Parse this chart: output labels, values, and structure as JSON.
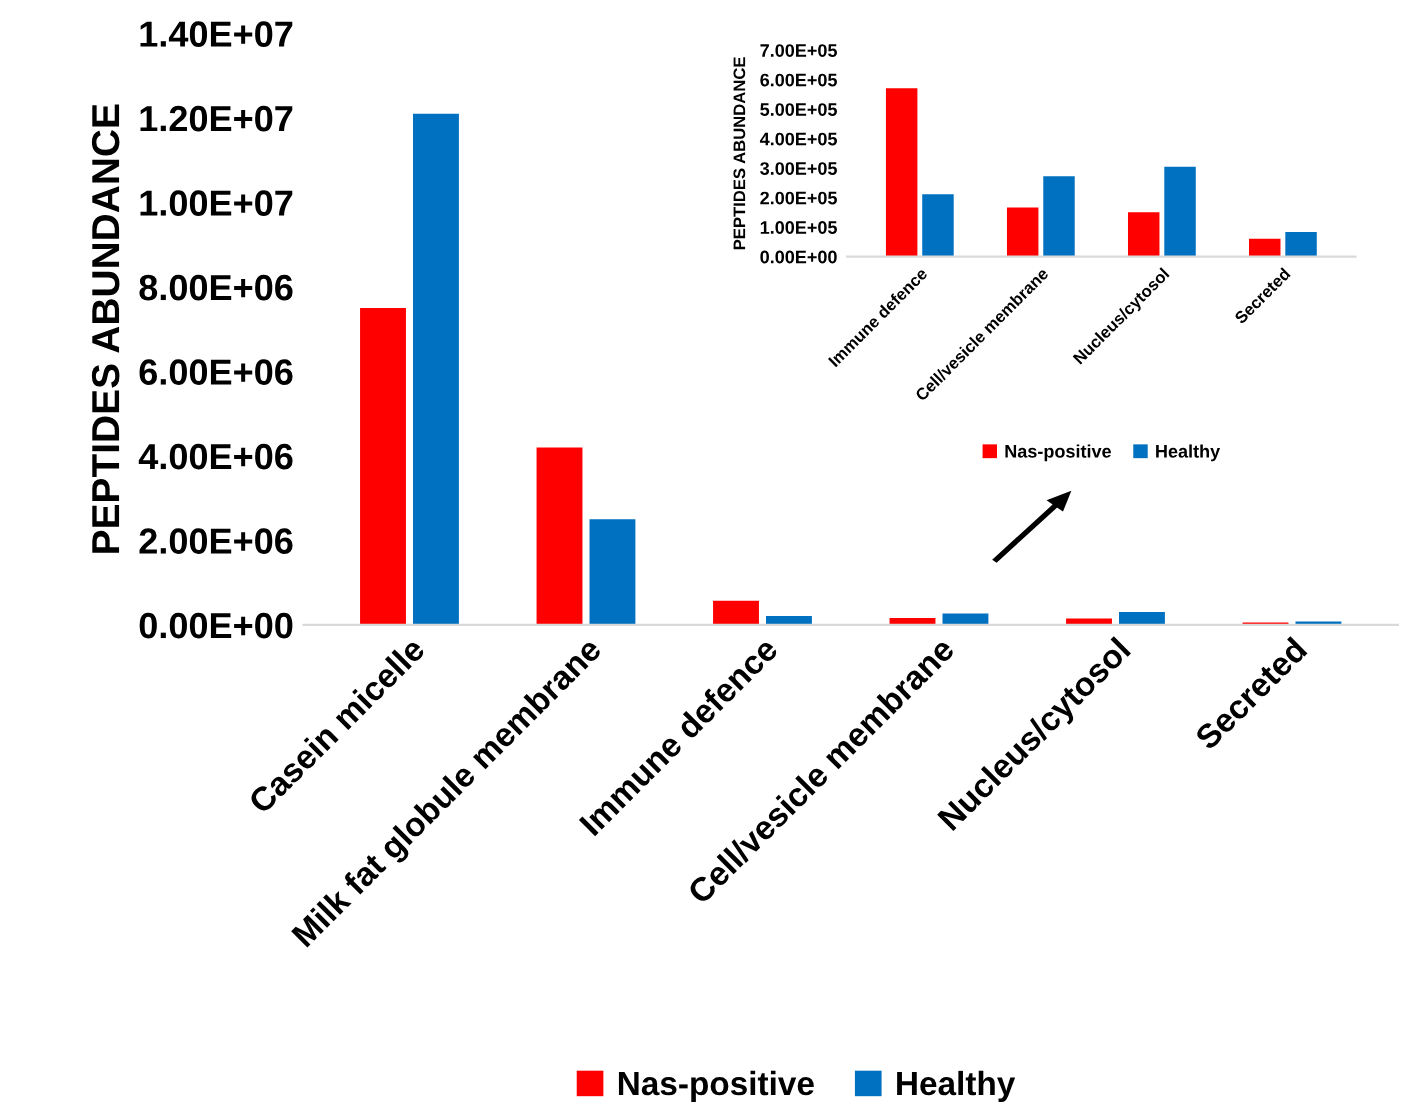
{
  "chart_data": [
    {
      "type": "bar",
      "ylabel": "PEPTIDES ABUNDANCE",
      "categories": [
        "Casein micelle",
        "Milk fat globule membrane",
        "Immune defence",
        "Cell/vesicle membrane",
        "Nucleus/cytosol",
        "Secreted"
      ],
      "series": [
        {
          "name": "Nas-positive",
          "color": "#ff0000",
          "values": [
            7500000,
            4200000,
            571000,
            167000,
            151000,
            61000
          ]
        },
        {
          "name": "Healthy",
          "color": "#0070c0",
          "values": [
            12100000,
            2500000,
            212000,
            273000,
            305000,
            84000
          ]
        }
      ],
      "ylim": [
        0,
        14000000
      ],
      "yticks": [
        {
          "value": 0,
          "label": "0.00E+00"
        },
        {
          "value": 2000000,
          "label": "2.00E+06"
        },
        {
          "value": 4000000,
          "label": "4.00E+06"
        },
        {
          "value": 6000000,
          "label": "6.00E+06"
        },
        {
          "value": 8000000,
          "label": "8.00E+06"
        },
        {
          "value": 10000000,
          "label": "1.00E+07"
        },
        {
          "value": 12000000,
          "label": "1.20E+07"
        },
        {
          "value": 14000000,
          "label": "1.40E+07"
        }
      ],
      "legend": "bottom",
      "grid": false
    },
    {
      "type": "bar",
      "ylabel": "PEPTIDES ABUNDANCE",
      "categories": [
        "Immune defence",
        "Cell/vesicle membrane",
        "Nucleus/cytosol",
        "Secreted"
      ],
      "series": [
        {
          "name": "Nas-positive",
          "color": "#ff0000",
          "values": [
            571000,
            167000,
            151000,
            61000
          ]
        },
        {
          "name": "Healthy",
          "color": "#0070c0",
          "values": [
            212000,
            273000,
            305000,
            84000
          ]
        }
      ],
      "ylim": [
        0,
        700000
      ],
      "yticks": [
        {
          "value": 0,
          "label": "0.00E+00"
        },
        {
          "value": 100000,
          "label": "1.00E+05"
        },
        {
          "value": 200000,
          "label": "2.00E+05"
        },
        {
          "value": 300000,
          "label": "3.00E+05"
        },
        {
          "value": 400000,
          "label": "4.00E+05"
        },
        {
          "value": 500000,
          "label": "5.00E+05"
        },
        {
          "value": 600000,
          "label": "6.00E+05"
        },
        {
          "value": 700000,
          "label": "7.00E+05"
        }
      ],
      "legend": "bottom",
      "grid": false
    }
  ]
}
